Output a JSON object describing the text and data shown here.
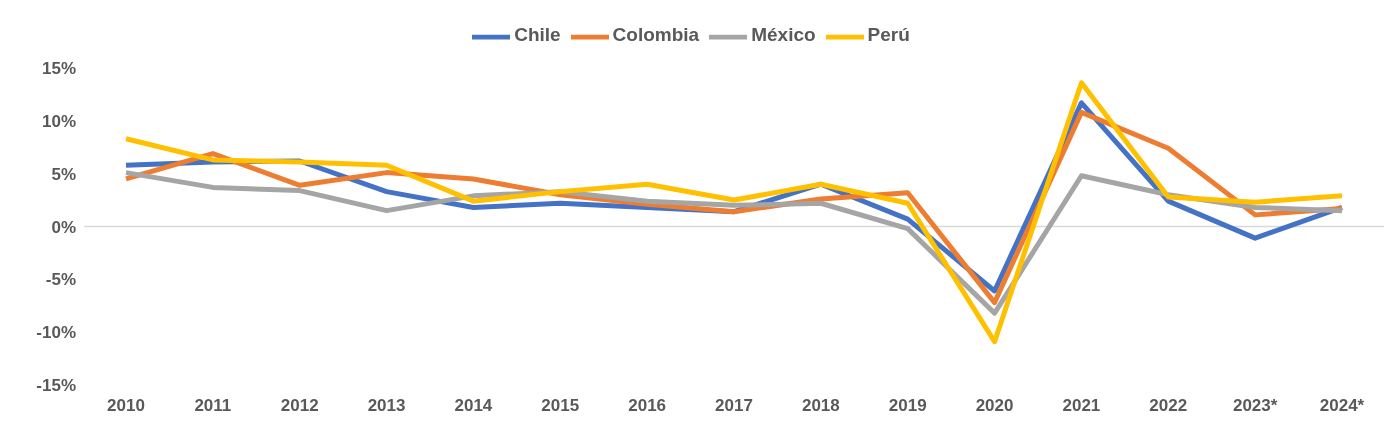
{
  "chart_data": {
    "type": "line",
    "categories": [
      "2010",
      "2011",
      "2012",
      "2013",
      "2014",
      "2015",
      "2016",
      "2017",
      "2018",
      "2019",
      "2020",
      "2021",
      "2022",
      "2023*",
      "2024*"
    ],
    "series": [
      {
        "name": "Chile",
        "color": "#4472c4",
        "values": [
          5.8,
          6.1,
          6.2,
          3.3,
          1.8,
          2.2,
          1.8,
          1.4,
          4.0,
          0.7,
          -6.1,
          11.7,
          2.4,
          -1.1,
          1.8
        ]
      },
      {
        "name": "Colombia",
        "color": "#ed7d31",
        "values": [
          4.5,
          6.9,
          3.9,
          5.1,
          4.5,
          3.0,
          2.1,
          1.4,
          2.6,
          3.2,
          -7.2,
          10.8,
          7.4,
          1.1,
          1.7
        ]
      },
      {
        "name": "México",
        "color": "#a5a5a5",
        "values": [
          5.1,
          3.7,
          3.4,
          1.5,
          2.9,
          3.3,
          2.4,
          2.0,
          2.2,
          -0.2,
          -8.2,
          4.8,
          3.0,
          1.8,
          1.5
        ]
      },
      {
        "name": "Perú",
        "color": "#ffc000",
        "values": [
          8.3,
          6.3,
          6.1,
          5.8,
          2.4,
          3.3,
          4.0,
          2.5,
          4.0,
          2.2,
          -10.9,
          13.6,
          2.8,
          2.3,
          2.9
        ]
      }
    ],
    "ylim": [
      -15,
      15
    ],
    "yticks": [
      {
        "value": -15,
        "label": "-15%"
      },
      {
        "value": -10,
        "label": "-10%"
      },
      {
        "value": -5,
        "label": "-5%"
      },
      {
        "value": 0,
        "label": "0%"
      },
      {
        "value": 5,
        "label": "5%"
      },
      {
        "value": 10,
        "label": "10%"
      },
      {
        "value": 15,
        "label": "15%"
      }
    ],
    "ref_lines": [
      {
        "axis": "y",
        "value": 0,
        "color": "#d9d9d9"
      }
    ],
    "legend": "top",
    "grid": false,
    "marker": "none",
    "line_style": "solid"
  }
}
